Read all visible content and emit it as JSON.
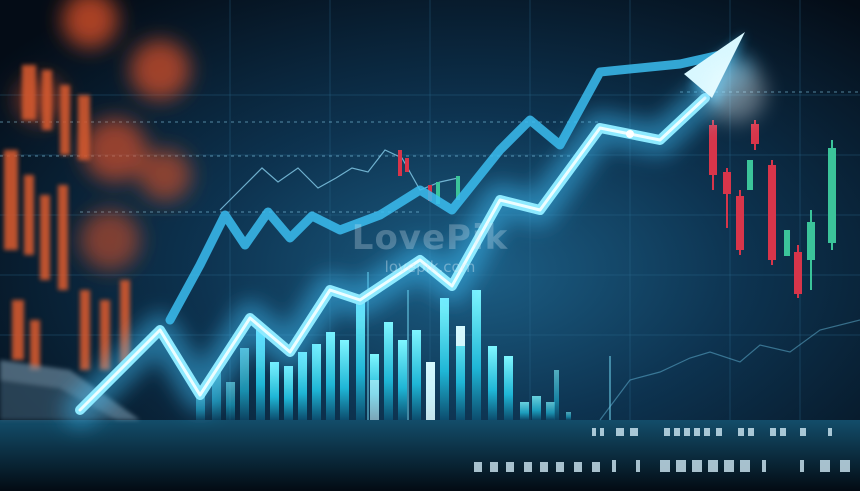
{
  "watermark": {
    "logo": "LovePik",
    "url": "lovepik.com"
  },
  "colors": {
    "background": "#06131f",
    "arrow": "#7fe6ff",
    "bars": "#3fd6e8",
    "candle_red": "#d8354a",
    "candle_green": "#3bc49a",
    "bokeh_orange": "#e0522a"
  }
}
